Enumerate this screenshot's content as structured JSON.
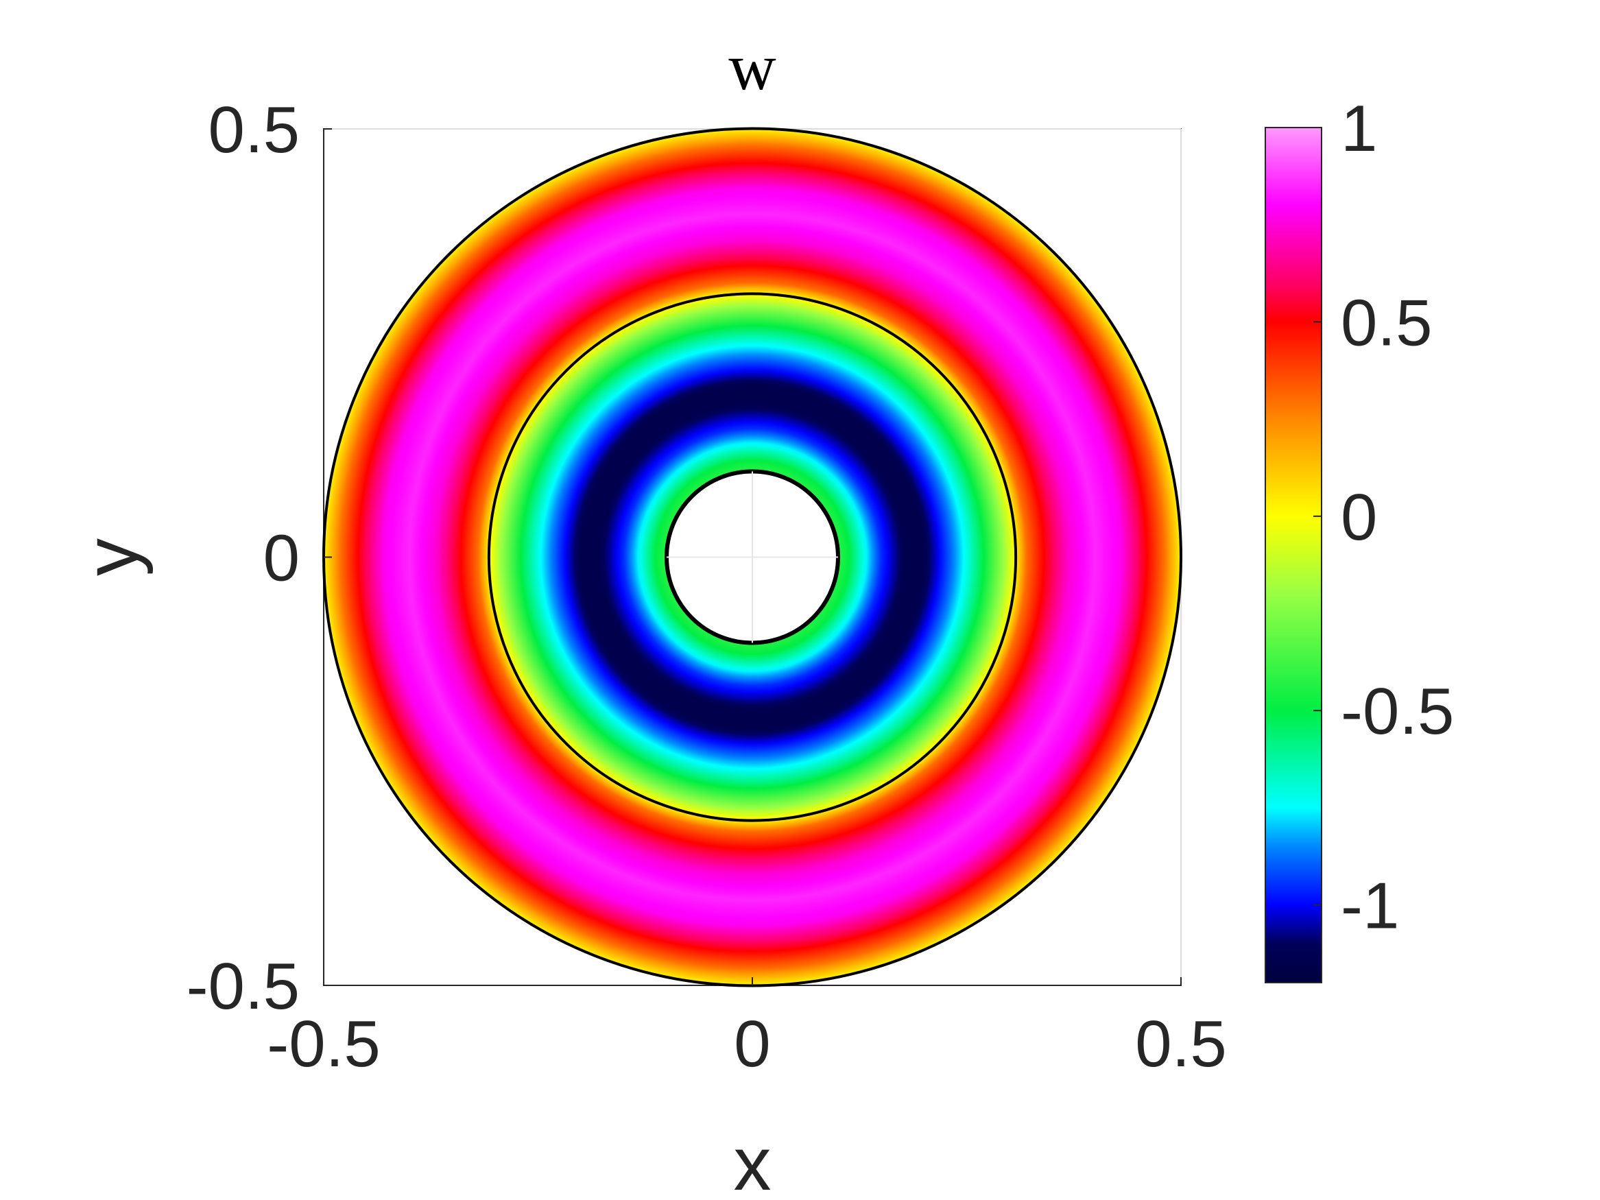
{
  "chart_data": {
    "type": "heatmap",
    "title": "w",
    "xlabel": "x",
    "ylabel": "y",
    "xlim": [
      -0.5,
      0.5
    ],
    "ylim": [
      -0.5,
      0.5
    ],
    "xticks": [
      -0.5,
      0,
      0.5
    ],
    "yticks": [
      -0.5,
      0,
      0.5
    ],
    "xtick_labels": [
      "-0.5",
      "0",
      "0.5"
    ],
    "ytick_labels": [
      "-0.5",
      "0",
      "0.5"
    ],
    "grid": true,
    "domain": {
      "shape": "annulus",
      "center": [
        0,
        0
      ],
      "inner_radius": 0.1,
      "outer_radius": 0.5,
      "interface_radius": 0.3073
    },
    "radial_profile": {
      "r": [
        0.1,
        0.113,
        0.13,
        0.15,
        0.18,
        0.2,
        0.23,
        0.25,
        0.27,
        0.293,
        0.3073,
        0.32,
        0.34,
        0.37,
        0.4,
        0.43,
        0.46,
        0.48,
        0.5
      ],
      "w": [
        -0.42,
        -0.5,
        -0.72,
        -0.95,
        -1.15,
        -1.15,
        -0.9,
        -0.72,
        -0.5,
        -0.2,
        0.02,
        0.3,
        0.5,
        0.75,
        0.85,
        0.78,
        0.5,
        0.3,
        0.02
      ]
    },
    "colorbar": {
      "limits": [
        -1.2,
        1.0
      ],
      "ticks": [
        -1,
        -0.5,
        0,
        0.5,
        1
      ],
      "tick_labels": [
        "-1",
        "-0.5",
        "0",
        "0.5",
        "1"
      ],
      "colormap": [
        {
          "v": -1.2,
          "color": "#00003f"
        },
        {
          "v": -1.1,
          "color": "#00005a"
        },
        {
          "v": -1.0,
          "color": "#0000ff"
        },
        {
          "v": -0.85,
          "color": "#0088ff"
        },
        {
          "v": -0.75,
          "color": "#00ffff"
        },
        {
          "v": -0.5,
          "color": "#00ee44"
        },
        {
          "v": -0.2,
          "color": "#99ff44"
        },
        {
          "v": 0.0,
          "color": "#ffff00"
        },
        {
          "v": 0.25,
          "color": "#ff8800"
        },
        {
          "v": 0.5,
          "color": "#ff0000"
        },
        {
          "v": 0.6,
          "color": "#ff0066"
        },
        {
          "v": 0.8,
          "color": "#ff00ff"
        },
        {
          "v": 1.0,
          "color": "#ff99ff"
        }
      ]
    }
  }
}
